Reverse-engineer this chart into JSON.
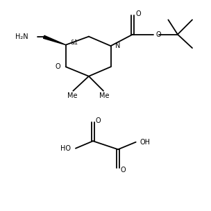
{
  "background_color": "#ffffff",
  "line_color": "#000000",
  "line_width": 1.3,
  "font_size": 7.0,
  "fig_width": 3.04,
  "fig_height": 3.04,
  "dpi": 100,
  "xlim": [
    0,
    10
  ],
  "ylim": [
    0,
    10
  ]
}
